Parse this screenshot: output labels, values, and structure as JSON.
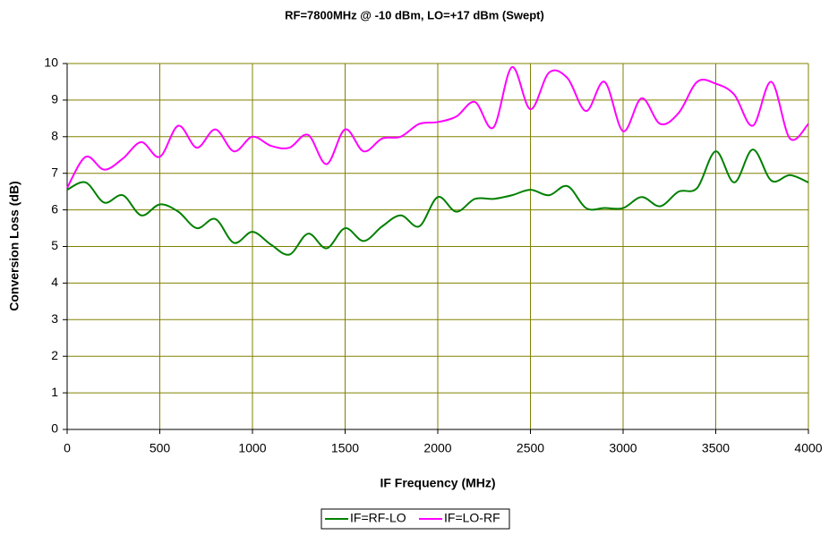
{
  "chart_data": {
    "type": "line",
    "title": "RF=7800MHz @ -10 dBm, LO=+17 dBm (Swept)",
    "x_label": "IF Frequency (MHz)",
    "y_label": "Conversion Loss (dB)",
    "x": [
      0,
      100,
      200,
      300,
      400,
      500,
      600,
      700,
      800,
      900,
      1000,
      1100,
      1200,
      1300,
      1400,
      1500,
      1600,
      1700,
      1800,
      1900,
      2000,
      2100,
      2200,
      2300,
      2400,
      2500,
      2600,
      2700,
      2800,
      2900,
      3000,
      3100,
      3200,
      3300,
      3400,
      3500,
      3600,
      3700,
      3800,
      3900,
      4000
    ],
    "series": [
      {
        "name": "IF=RF-LO",
        "color": "#008000",
        "values": [
          6.55,
          6.75,
          6.2,
          6.4,
          5.85,
          6.15,
          5.95,
          5.5,
          5.75,
          5.1,
          5.4,
          5.05,
          4.78,
          5.35,
          4.95,
          5.5,
          5.15,
          5.55,
          5.85,
          5.55,
          6.35,
          5.95,
          6.3,
          6.3,
          6.4,
          6.55,
          6.4,
          6.65,
          6.05,
          6.05,
          6.05,
          6.35,
          6.1,
          6.5,
          6.6,
          7.6,
          6.75,
          7.65,
          6.8,
          6.95,
          6.75
        ]
      },
      {
        "name": "IF=LO-RF",
        "color": "#ff00ff",
        "values": [
          6.6,
          7.45,
          7.1,
          7.4,
          7.85,
          7.45,
          8.3,
          7.7,
          8.2,
          7.6,
          8.0,
          7.75,
          7.7,
          8.05,
          7.25,
          8.2,
          7.6,
          7.95,
          8.0,
          8.35,
          8.4,
          8.55,
          8.95,
          8.25,
          9.9,
          8.75,
          9.75,
          9.6,
          8.7,
          9.5,
          8.15,
          9.05,
          8.35,
          8.65,
          9.5,
          9.45,
          9.15,
          8.3,
          9.5,
          7.95,
          8.35
        ]
      }
    ],
    "xlim": [
      0,
      4000
    ],
    "xticks": [
      0,
      500,
      1000,
      1500,
      2000,
      2500,
      3000,
      3500,
      4000
    ],
    "ylim": [
      0,
      10
    ],
    "yticks": [
      0,
      1,
      2,
      3,
      4,
      5,
      6,
      7,
      8,
      9,
      10
    ],
    "grid": true,
    "grid_color": "#808000",
    "legend": "bottom"
  }
}
